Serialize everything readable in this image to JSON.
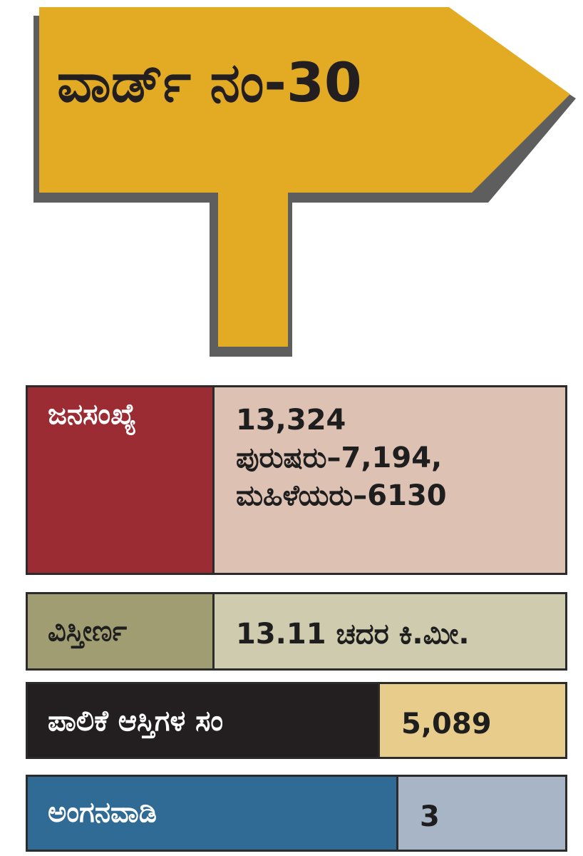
{
  "sign": {
    "title": "ವಾರ್ಡ್ ನಂ-30",
    "color": "#e3ab24"
  },
  "stats": {
    "population": {
      "label": "ಜನಸಂಖ್ಯೆ",
      "total": "13,324",
      "men": "ಪುರುಷರು–7,194,",
      "women": "ಮಹಿಳೆಯರು–6130",
      "label_color": "#9b2c33",
      "value_color": "#ddc1b3"
    },
    "area": {
      "label": "ವಿಸ್ತೀರ್ಣ",
      "value": "13.11 ಚದರ ಕಿ.ಮೀ.",
      "label_color": "#a19d72",
      "value_color": "#cfcbae"
    },
    "assets": {
      "label": "ಪಾಲಿಕೆ ಆಸ್ತಿಗಳ ಸಂ",
      "value": "5,089",
      "label_color": "#231f20",
      "value_color": "#e8cc8b"
    },
    "anganwadi": {
      "label": "ಅಂಗನವಾಡಿ",
      "value": "3",
      "label_color": "#2f6b95",
      "value_color": "#a8b5c6"
    }
  }
}
